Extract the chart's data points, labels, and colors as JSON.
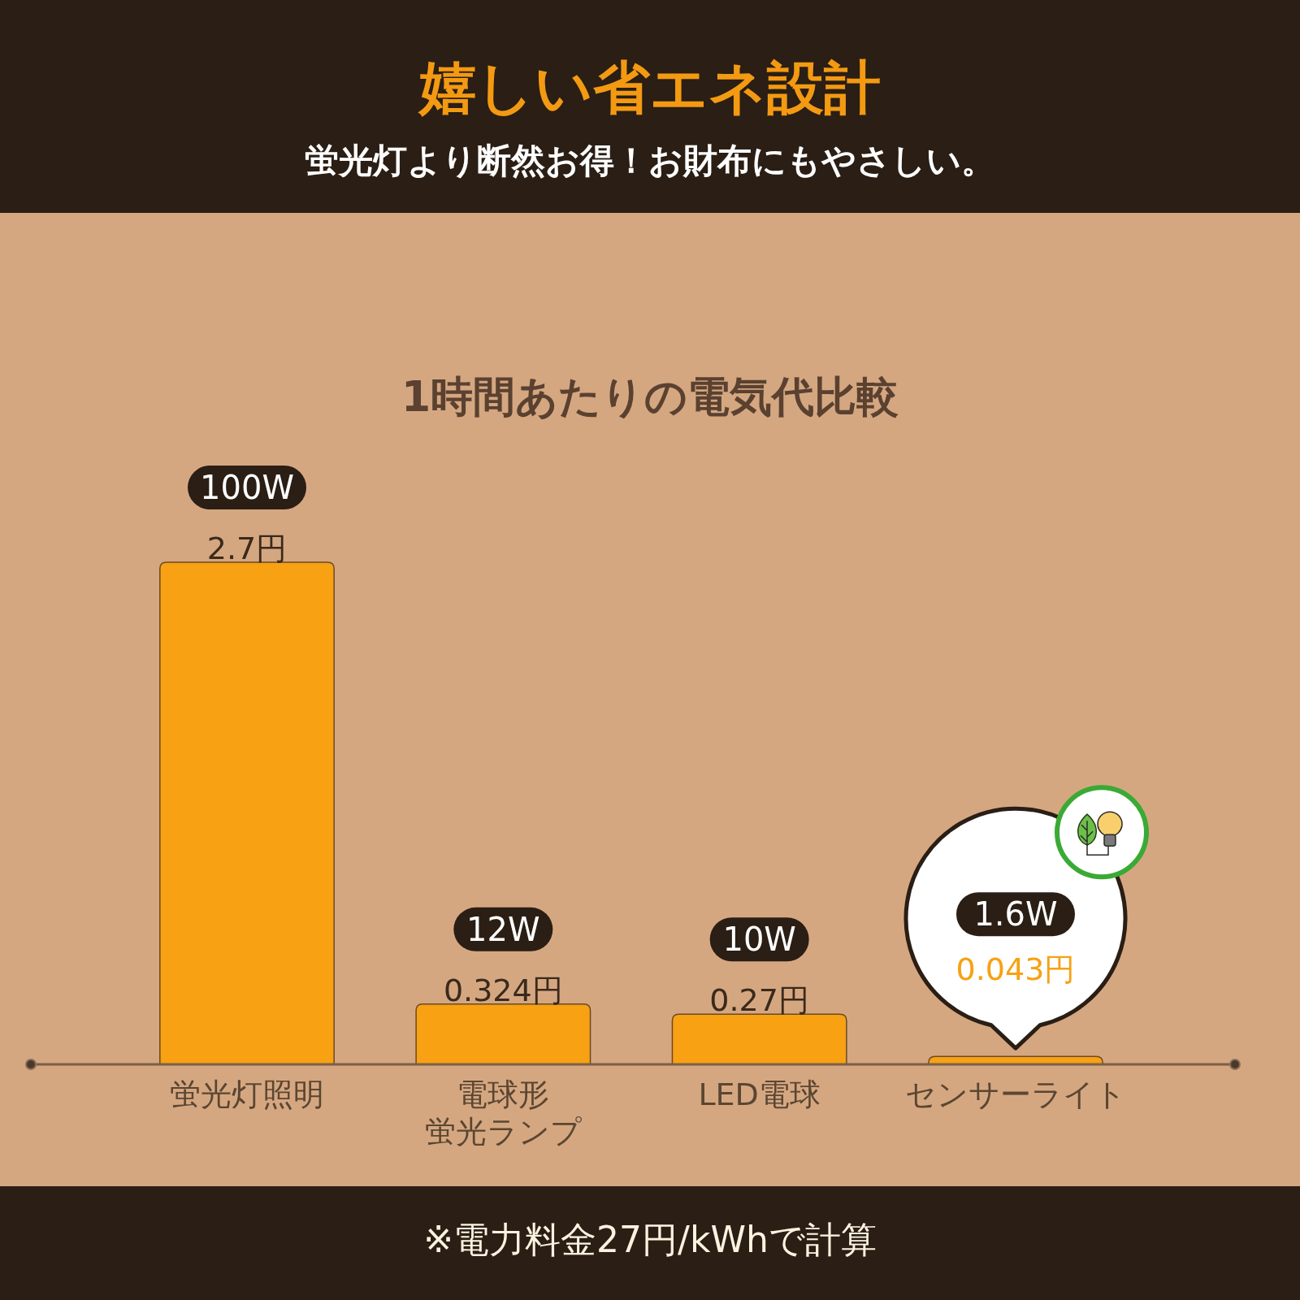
{
  "chart_data": {
    "type": "bar",
    "title": "嬉しい省エネ設計",
    "subtitle": "蛍光灯より断然お得！お財布にもやさしい。",
    "categories": [
      "蛍光灯照明",
      "電球形蛍光ランプ",
      "LED電球",
      "センサーライト"
    ],
    "values": [
      2.7,
      0.324,
      0.27,
      0.043
    ],
    "color": "#f7a113",
    "value_labels": [
      "2.7円",
      "0.324円",
      "0.27円",
      "0.043円"
    ],
    "annotations": [
      "1時間あたりの電気代比較",
      {
        "text": "100W",
        "x": "蛍光灯照明",
        "y": 2.7
      },
      {
        "text": "12W",
        "x": "電球形蛍光ランプ",
        "y": 0.324
      },
      {
        "text": "10W",
        "x": "LED電球",
        "y": 0.27
      },
      "1.6W",
      "※電力料金27円/kWhで計算"
    ]
  }
}
